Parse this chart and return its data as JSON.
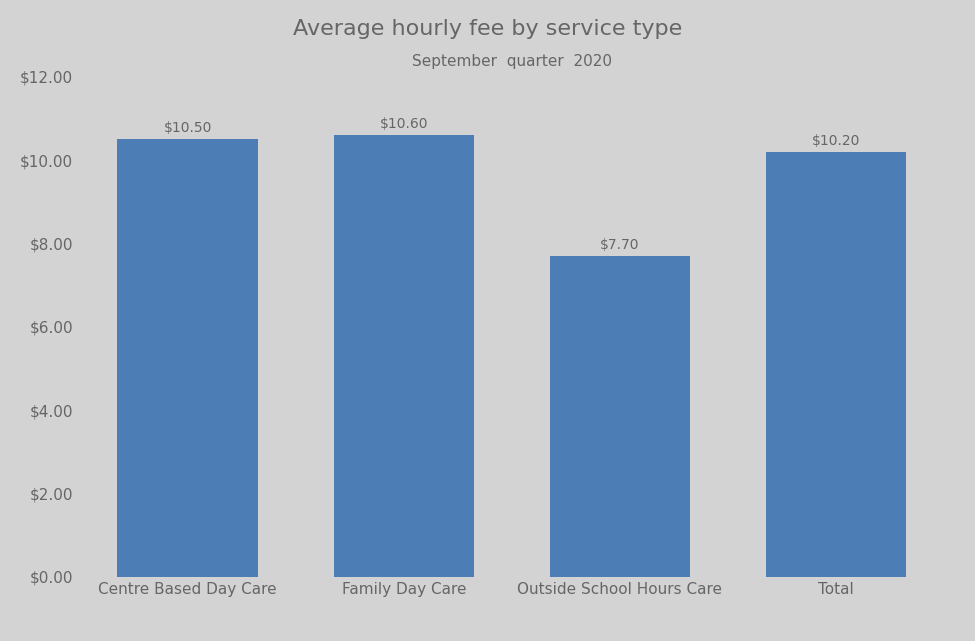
{
  "title": "Average hourly fee by service type",
  "subtitle": "September  quarter  2020",
  "categories": [
    "Centre Based Day Care",
    "Family Day Care",
    "Outside School Hours Care",
    "Total"
  ],
  "values": [
    10.5,
    10.6,
    7.7,
    10.2
  ],
  "bar_color": "#4d7db5",
  "background_color": "#d3d3d3",
  "label_color": "#666666",
  "title_fontsize": 16,
  "subtitle_fontsize": 11,
  "tick_fontsize": 11,
  "annotation_fontsize": 10,
  "ylim": [
    0,
    12
  ],
  "yticks": [
    0,
    2,
    4,
    6,
    8,
    10,
    12
  ],
  "bar_width": 0.65
}
